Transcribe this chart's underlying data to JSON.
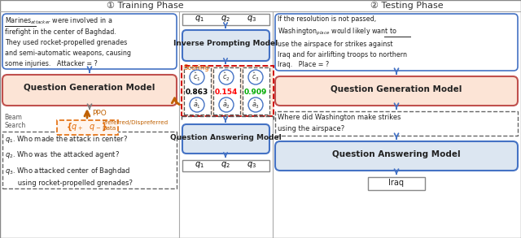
{
  "title_training": "① Training Phase",
  "title_testing": "② Testing Phase",
  "bg_color": "#ffffff",
  "inverse_model_label": "Inverse Prompting Model",
  "qgen_model_label": "Question Generation Model",
  "qa_model_label": "Question Answering Model",
  "qgen_model_label2": "Question Generation Model",
  "qa_model_label2": "Question Answering Model",
  "answer_question": "Where did Washington make strikes\nusing the airspace?",
  "answer_iraq": "Iraq",
  "score1": "0.863",
  "score2": "0.154",
  "score3": "0.909",
  "score1_color": "#000000",
  "score2_color": "#ff0000",
  "score3_color": "#00aa00",
  "scoring_label": "Scoring",
  "ppo_label": "PPO",
  "beam_search_label": "Beam\nSearch",
  "preferred_label": "Preferred/Dispreferred\nData",
  "box_blue_fill": "#dce6f1",
  "box_blue_border": "#4472c4",
  "box_pink_fill": "#fce4d6",
  "box_pink_border": "#c0504d",
  "box_white_fill": "#ffffff",
  "box_red_dashed": "#cc0000",
  "box_orange": "#e36c09",
  "arrow_blue": "#4472c4",
  "arrow_gray": "#808080",
  "arrow_orange": "#c06000"
}
